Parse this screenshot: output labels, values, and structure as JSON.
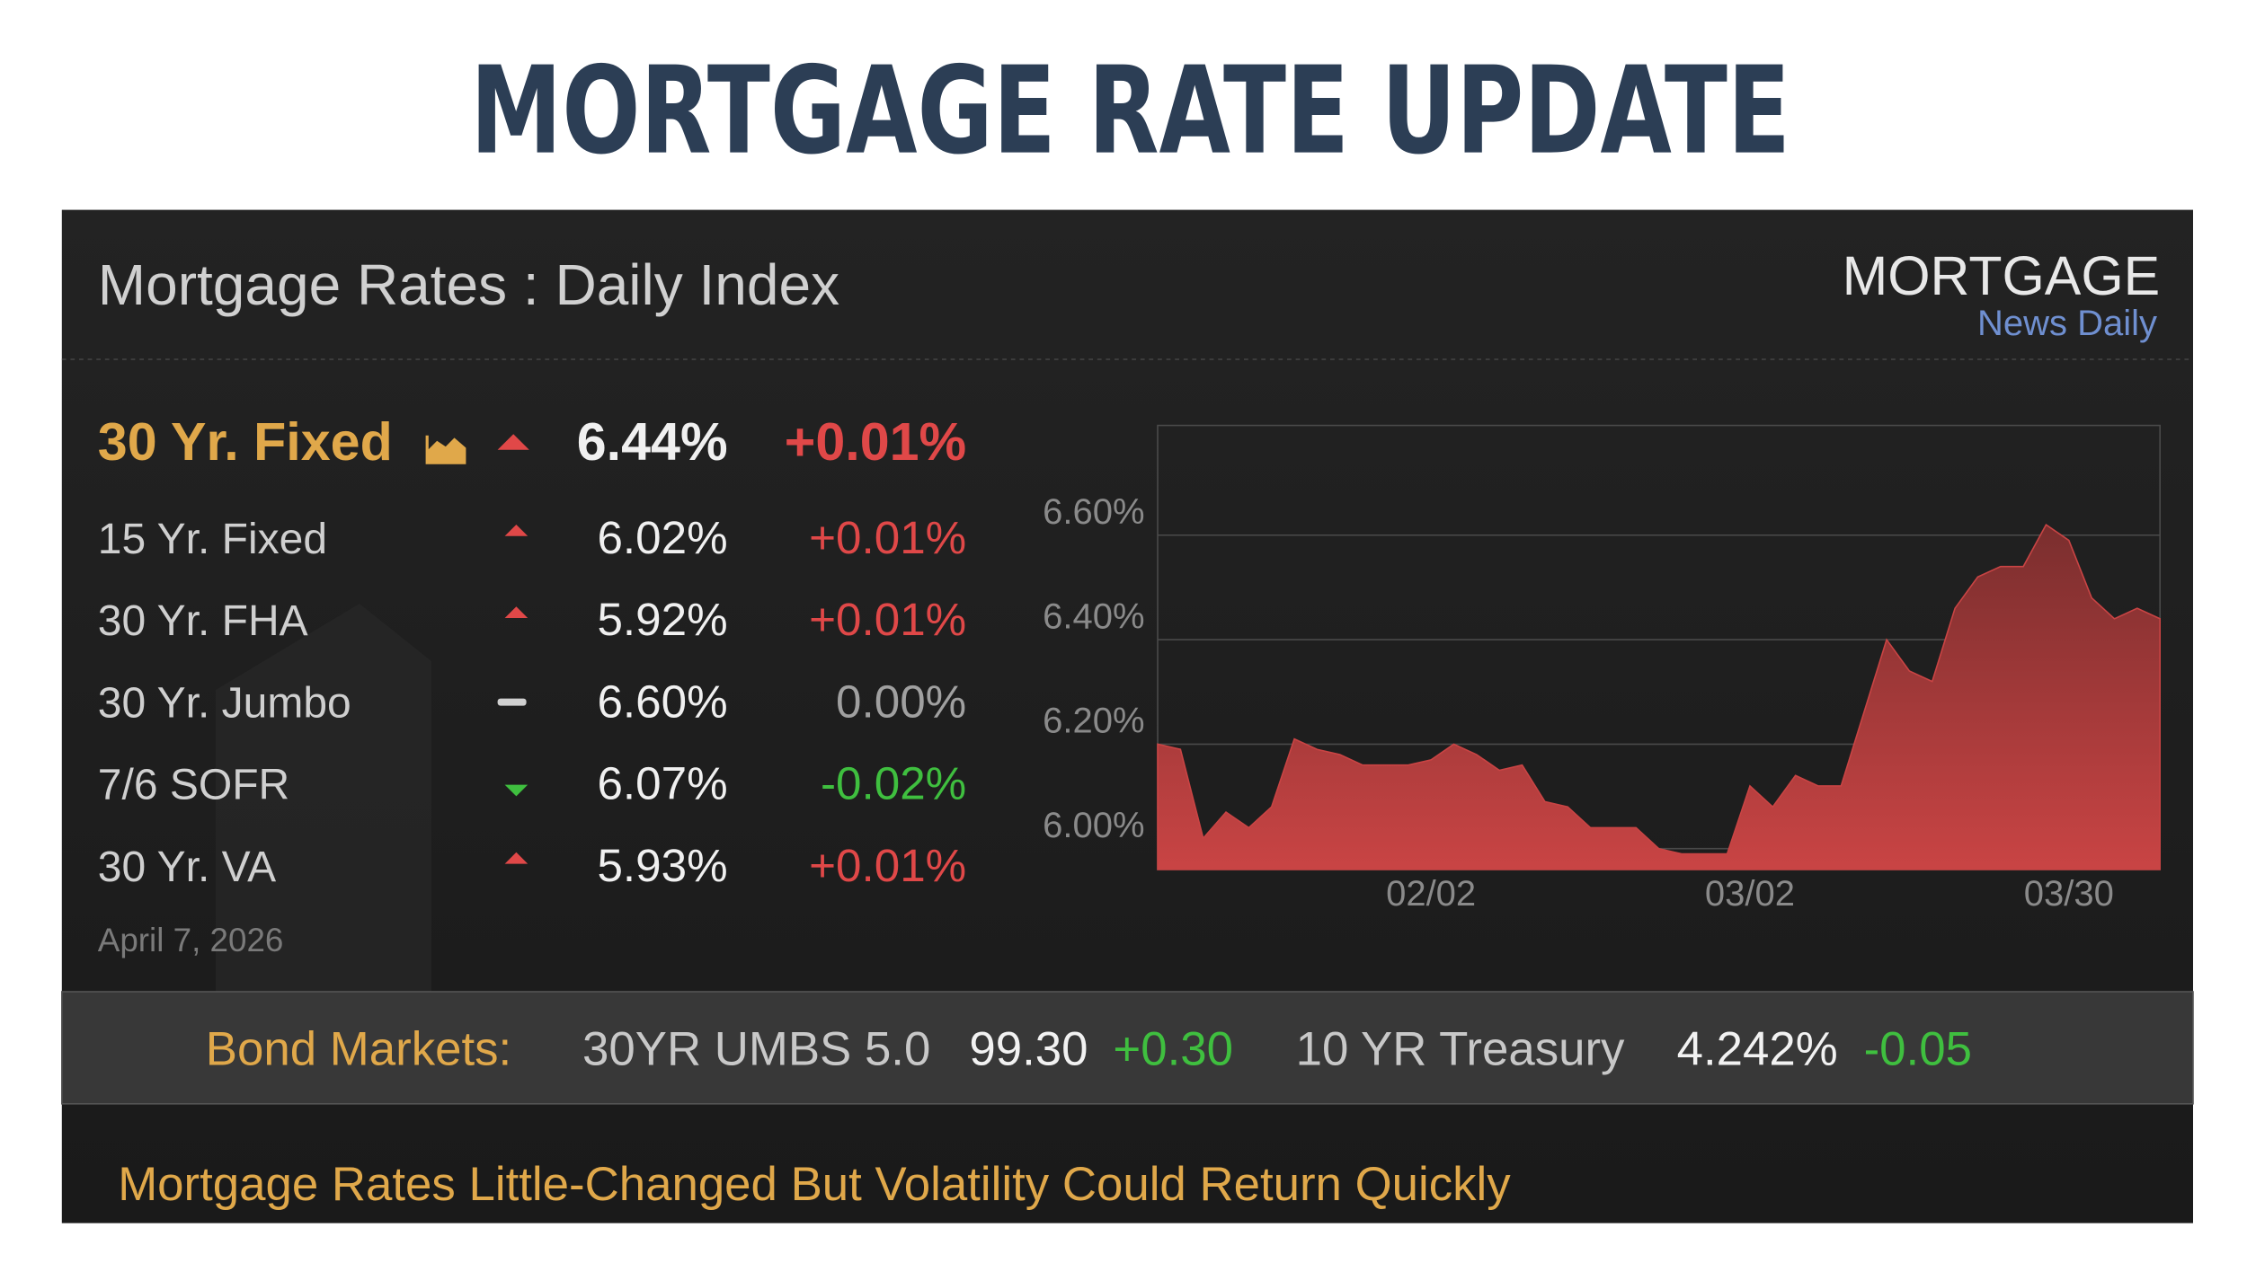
{
  "header": {
    "title": "MORTGAGE RATE UPDATE"
  },
  "widget": {
    "title": "Mortgage Rates : Daily Index",
    "logo": {
      "name": "MORTGAGE",
      "sub": "News Daily"
    },
    "rows": [
      {
        "name": "30 Yr. Fixed",
        "rate": "6.44%",
        "change": "+0.01%"
      },
      {
        "name": "15 Yr. Fixed",
        "rate": "6.02%",
        "change": "+0.01%"
      },
      {
        "name": "30 Yr. FHA",
        "rate": "5.92%",
        "change": "+0.01%"
      },
      {
        "name": "30 Yr. Jumbo",
        "rate": "6.60%",
        "change": "0.00%"
      },
      {
        "name": "7/6 SOFR",
        "rate": "6.07%",
        "change": "-0.02%"
      },
      {
        "name": "30 Yr. VA",
        "rate": "5.93%",
        "change": "+0.01%"
      }
    ],
    "date": "April 7, 2026",
    "bond": {
      "label": "Bond Markets:",
      "items": [
        {
          "name": "30YR UMBS 5.0",
          "price": "99.30",
          "change": "+0.30"
        },
        {
          "name": "10 YR Treasury",
          "price": "4.242%",
          "change": "-0.05"
        }
      ]
    },
    "headline": "Mortgage Rates Little-Changed But Volatility Could Return Quickly"
  },
  "chart_data": {
    "type": "area",
    "color": "#c94444",
    "categories": [
      null,
      null,
      null,
      null,
      null,
      null,
      null,
      null,
      null,
      null,
      null,
      null,
      "02/02",
      null,
      null,
      null,
      null,
      null,
      null,
      null,
      null,
      null,
      null,
      null,
      null,
      null,
      "03/02",
      null,
      null,
      null,
      null,
      null,
      null,
      null,
      null,
      null,
      null,
      null,
      null,
      null,
      "03/30",
      null,
      null,
      null,
      null
    ],
    "values": [
      6.2,
      6.19,
      6.02,
      6.07,
      6.04,
      6.08,
      6.21,
      6.19,
      6.18,
      6.16,
      6.16,
      6.16,
      6.17,
      6.2,
      6.18,
      6.15,
      6.16,
      6.09,
      6.08,
      6.04,
      6.04,
      6.04,
      6.0,
      5.99,
      5.99,
      5.99,
      6.12,
      6.08,
      6.14,
      6.12,
      6.12,
      6.26,
      6.4,
      6.34,
      6.32,
      6.46,
      6.52,
      6.54,
      6.54,
      6.62,
      6.59,
      6.48,
      6.44,
      6.46,
      6.44
    ],
    "ylim": [
      5.96,
      6.81
    ],
    "yticks": [
      {
        "value": 6.0,
        "label": "6.00%"
      },
      {
        "value": 6.2,
        "label": "6.20%"
      },
      {
        "value": 6.4,
        "label": "6.40%"
      },
      {
        "value": 6.6,
        "label": "6.60%"
      }
    ],
    "grid": true
  }
}
